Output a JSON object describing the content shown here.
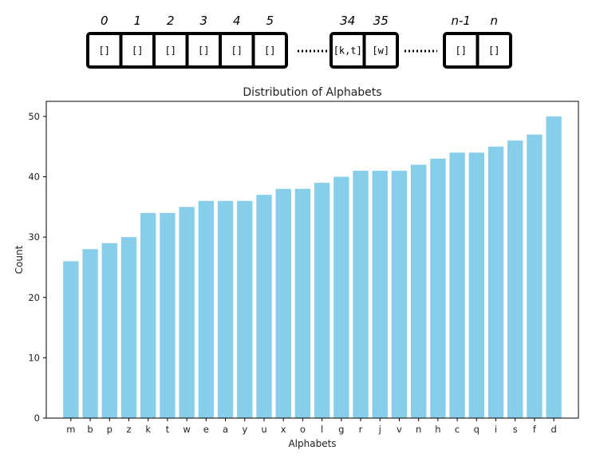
{
  "diagram": {
    "groups": [
      {
        "cells": [
          {
            "index": "0",
            "content": "[]"
          },
          {
            "index": "1",
            "content": "[]"
          },
          {
            "index": "2",
            "content": "[]"
          },
          {
            "index": "3",
            "content": "[]"
          },
          {
            "index": "4",
            "content": "[]"
          },
          {
            "index": "5",
            "content": "[]"
          }
        ]
      },
      {
        "cells": [
          {
            "index": "34",
            "content": "[k,t]"
          },
          {
            "index": "35",
            "content": "[w]"
          }
        ]
      },
      {
        "cells": [
          {
            "index": "n-1",
            "content": "[]"
          },
          {
            "index": "n",
            "content": "[]"
          }
        ]
      }
    ],
    "colors": {
      "stroke": "#000000"
    }
  },
  "chart_data": {
    "type": "bar",
    "title": "Distribution of Alphabets",
    "xlabel": "Alphabets",
    "ylabel": "Count",
    "categories": [
      "m",
      "b",
      "p",
      "z",
      "k",
      "t",
      "w",
      "e",
      "a",
      "y",
      "u",
      "x",
      "o",
      "l",
      "g",
      "r",
      "j",
      "v",
      "n",
      "h",
      "c",
      "q",
      "i",
      "s",
      "f",
      "d"
    ],
    "values": [
      26,
      28,
      29,
      30,
      34,
      34,
      35,
      36,
      36,
      36,
      37,
      38,
      38,
      39,
      40,
      41,
      41,
      41,
      42,
      43,
      44,
      44,
      45,
      46,
      47,
      50
    ],
    "ylim": [
      0,
      52.5
    ],
    "yticks": [
      0,
      10,
      20,
      30,
      40,
      50
    ],
    "grid": false,
    "color": "#87CEEB"
  }
}
